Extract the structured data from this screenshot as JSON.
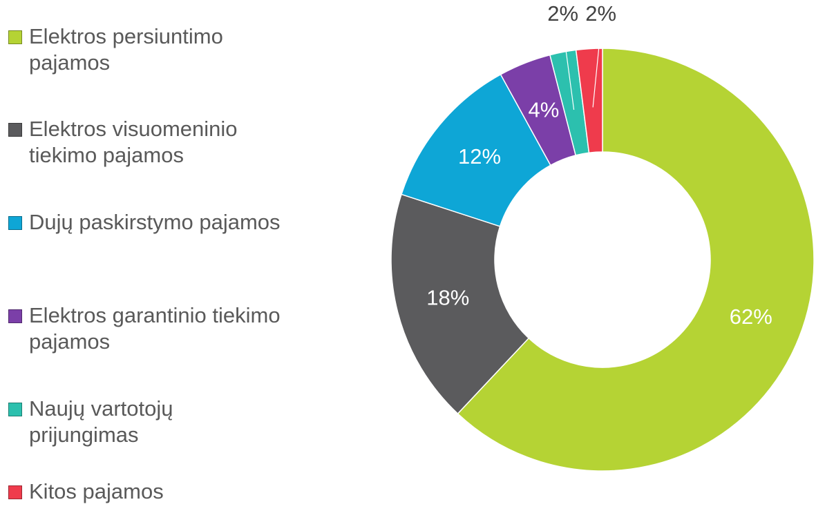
{
  "chart_data": {
    "type": "donut",
    "categories": [
      "Elektros persiuntimo pajamos",
      "Elektros visuomeninio tiekimo pajamos",
      "Dujų paskirstymo pajamos",
      "Elektros garantinio tiekimo pajamos",
      "Naujų vartotojų prijungimas",
      "Kitos pajamos"
    ],
    "values": [
      62,
      18,
      12,
      4,
      2,
      2
    ],
    "value_labels": [
      "62%",
      "18%",
      "12%",
      "4%",
      "2%",
      "2%"
    ],
    "colors": [
      "#b5d334",
      "#5b5b5d",
      "#0ea6d6",
      "#7b3fa8",
      "#2cc0ae",
      "#ef3b4c"
    ],
    "legend": "left"
  }
}
